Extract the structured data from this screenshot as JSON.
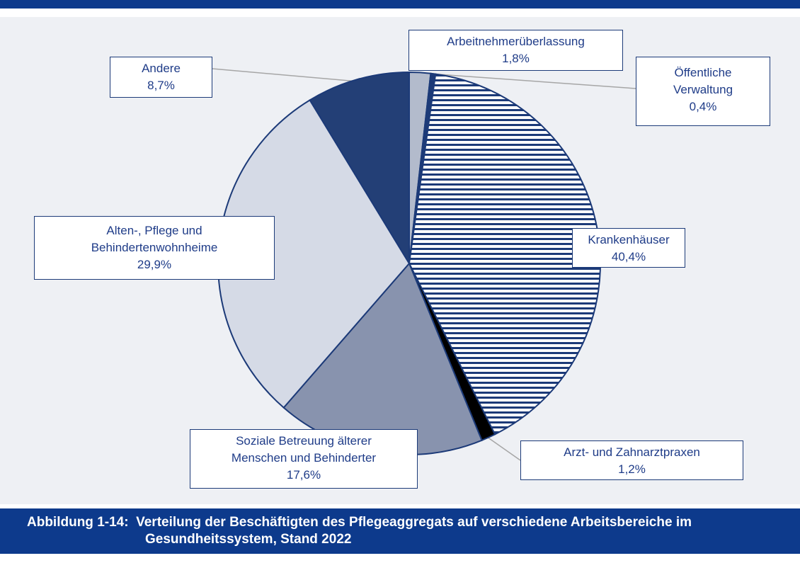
{
  "chart_data": {
    "type": "pie",
    "title": "Abbildung 1-14:  Verteilung der Beschäftigten des Pflegeaggregats auf verschiedene Arbeitsbereiche im Gesundheitssystem, Stand 2022",
    "categories": [
      "Arbeitnehmerüberlassung",
      "Öffentliche Verwaltung",
      "Krankenhäuser",
      "Arzt- und Zahnarztpraxen",
      "Soziale Betreuung älterer Menschen und Behinderter",
      "Alten-, Pflege und Behindertenwohnheime",
      "Andere"
    ],
    "values": [
      1.8,
      0.4,
      40.4,
      1.2,
      17.6,
      29.9,
      8.7
    ],
    "value_labels": [
      "1,8%",
      "0,4%",
      "40,4%",
      "1,2%",
      "17,6%",
      "29,9%",
      "8,7%"
    ],
    "colors": [
      "#b3bbcc",
      "#1c3a78",
      "hatch",
      "#000000",
      "#8893ae",
      "#d5dae6",
      "#233f76"
    ]
  }
}
